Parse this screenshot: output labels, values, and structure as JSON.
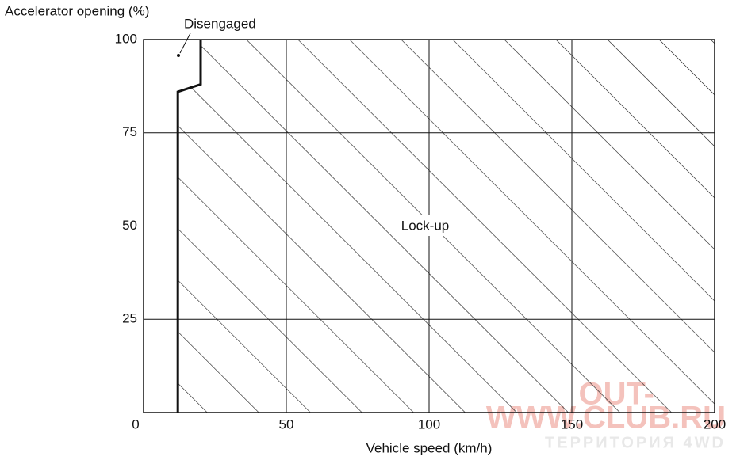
{
  "chart_data": {
    "type": "area",
    "y_label": "Accelerator opening (%)",
    "x_label": "Vehicle speed (km/h)",
    "x": [
      12,
      12,
      20,
      20
    ],
    "values": [
      0,
      86,
      88,
      100
    ],
    "region_label": "Lock-up",
    "point_label": "Disengaged",
    "color": "#111111",
    "xlim": [
      0,
      200
    ],
    "xticks": [
      0,
      50,
      100,
      150,
      200
    ],
    "ylim": [
      0,
      100
    ],
    "yticks": [
      25,
      50,
      75,
      100
    ],
    "grid": true,
    "watermark": [
      "OUT-",
      "WWW.CLUB.RU",
      "ТЕРРИТОРИЯ 4WD"
    ]
  }
}
